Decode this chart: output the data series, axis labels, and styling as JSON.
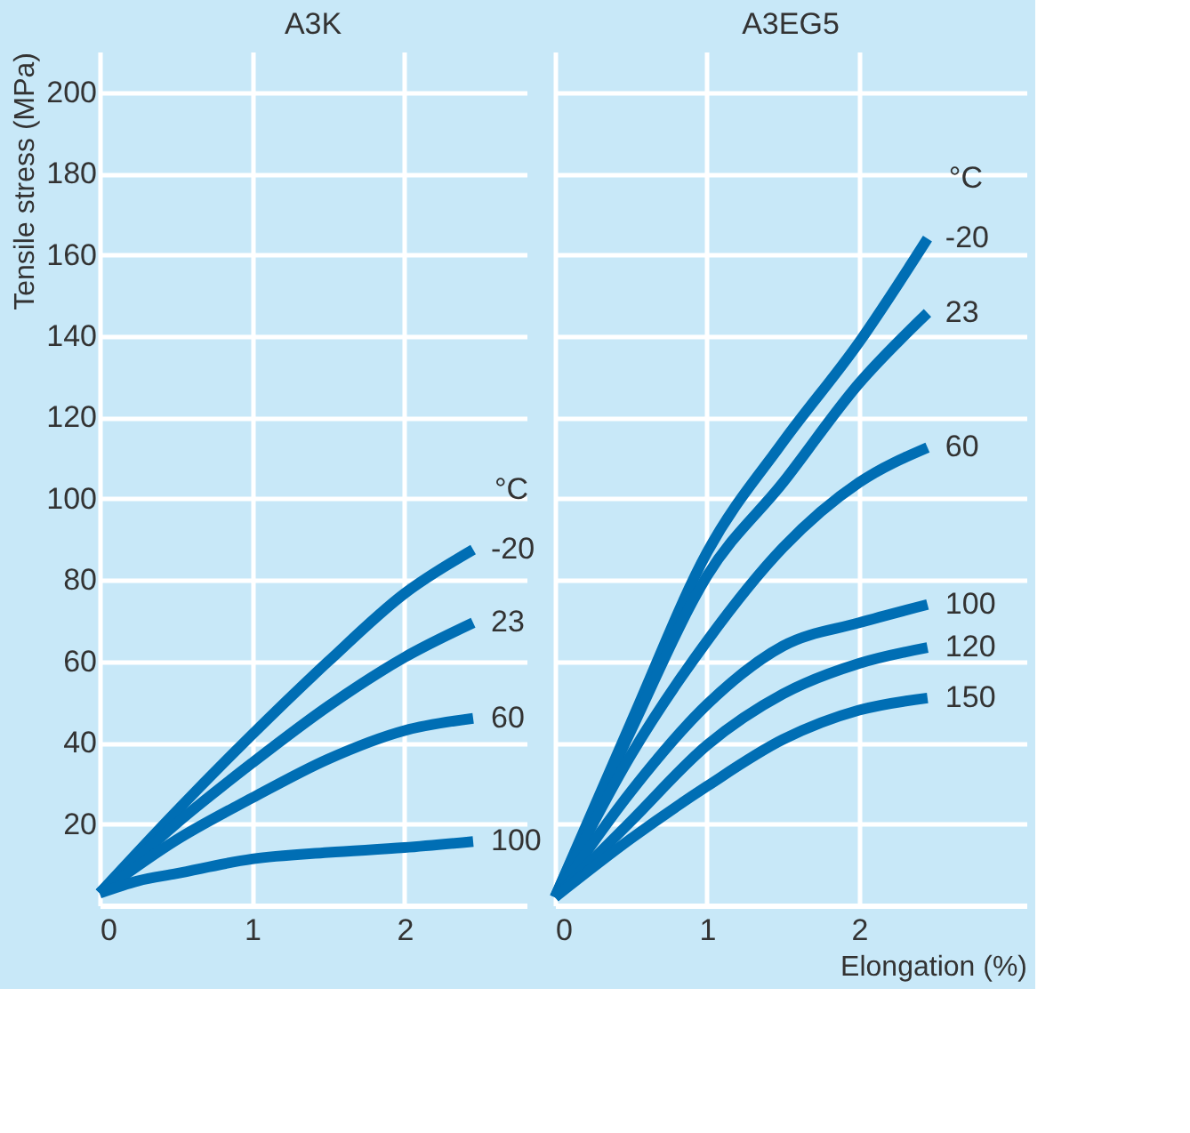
{
  "chart_data": [
    {
      "type": "line",
      "title": "A3K",
      "ylabel": "Tensile stress (MPa)",
      "xlim": [
        0,
        2.8
      ],
      "xticks": [
        0,
        1,
        2
      ],
      "ylim": [
        0,
        210
      ],
      "yticks": [
        20,
        40,
        60,
        80,
        100,
        120,
        140,
        160,
        180,
        200
      ],
      "grid": true,
      "marker": "none",
      "line_style": "solid",
      "annotations": [
        "°C"
      ],
      "series": [
        {
          "name": "-20",
          "color": "#006eb4",
          "x": [
            0,
            0.5,
            1,
            1.5,
            2,
            2.45
          ],
          "values": [
            3,
            23,
            42,
            60,
            76.7,
            87.5
          ]
        },
        {
          "name": "23",
          "color": "#006eb4",
          "x": [
            0,
            0.5,
            1,
            1.5,
            2,
            2.45
          ],
          "values": [
            3,
            20,
            35,
            49,
            61,
            69.5
          ]
        },
        {
          "name": "60",
          "color": "#006eb4",
          "x": [
            0,
            0.5,
            1,
            1.5,
            2,
            2.45
          ],
          "values": [
            3,
            16,
            26.4,
            36,
            43,
            46
          ]
        },
        {
          "name": "100",
          "color": "#006eb4",
          "x": [
            0,
            0.25,
            0.5,
            1,
            1.5,
            2,
            2.45
          ],
          "values": [
            3,
            6,
            7.8,
            11.4,
            13,
            14.2,
            15.7
          ]
        }
      ]
    },
    {
      "type": "line",
      "title": "A3EG5",
      "xlabel": "Elongation (%)",
      "xlim": [
        0,
        3.1
      ],
      "xticks": [
        0,
        1,
        2
      ],
      "ylim": [
        0,
        210
      ],
      "yticks": [
        20,
        40,
        60,
        80,
        100,
        120,
        140,
        160,
        180,
        200
      ],
      "grid": true,
      "marker": "none",
      "line_style": "solid",
      "tick_labels": "x",
      "annotations": [
        "°C"
      ],
      "series": [
        {
          "name": "-20",
          "color": "#006eb4",
          "x": [
            0,
            0.5,
            1,
            1.5,
            2,
            2.45
          ],
          "values": [
            2,
            45,
            86.8,
            114,
            138.5,
            164
          ]
        },
        {
          "name": "23",
          "color": "#006eb4",
          "x": [
            0,
            0.5,
            1,
            1.5,
            2,
            2.45
          ],
          "values": [
            2,
            43,
            81,
            104,
            128.4,
            145.7
          ]
        },
        {
          "name": "60",
          "color": "#006eb4",
          "x": [
            0,
            0.5,
            1,
            1.5,
            2,
            2.45
          ],
          "values": [
            2,
            37,
            65,
            88,
            104,
            112.6
          ]
        },
        {
          "name": "100",
          "color": "#006eb4",
          "x": [
            0,
            0.5,
            1,
            1.5,
            2,
            2.45
          ],
          "values": [
            2,
            28,
            49.4,
            63.8,
            69.5,
            74
          ]
        },
        {
          "name": "120",
          "color": "#006eb4",
          "x": [
            0,
            0.5,
            1,
            1.5,
            2,
            2.45
          ],
          "values": [
            2,
            20.7,
            39.4,
            52,
            59.5,
            63.4
          ]
        },
        {
          "name": "150",
          "color": "#006eb4",
          "x": [
            0,
            0.5,
            1,
            1.5,
            2,
            2.45
          ],
          "values": [
            2,
            16.4,
            29.3,
            40.8,
            48,
            51
          ]
        }
      ]
    }
  ]
}
